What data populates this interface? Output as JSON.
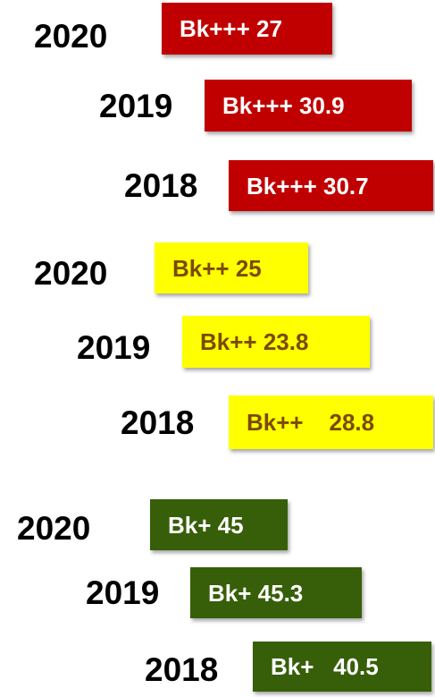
{
  "groups": [
    {
      "items": [
        {
          "year": "2020",
          "label": "Bk+++ 27"
        },
        {
          "year": "2019",
          "label": "Bk+++ 30.9"
        },
        {
          "year": "2018",
          "label": "Bk+++ 30.7"
        }
      ]
    },
    {
      "items": [
        {
          "year": "2020",
          "label": "Bk++ 25"
        },
        {
          "year": "2019",
          "label": "Bk++ 23.8"
        },
        {
          "year": "2018",
          "label": "Bk++    28.8"
        }
      ]
    },
    {
      "items": [
        {
          "year": "2020",
          "label": "Bk+ 45"
        },
        {
          "year": "2019",
          "label": "Bk+ 45.3"
        },
        {
          "year": "2018",
          "label": "Bk+   40.5"
        }
      ]
    }
  ]
}
